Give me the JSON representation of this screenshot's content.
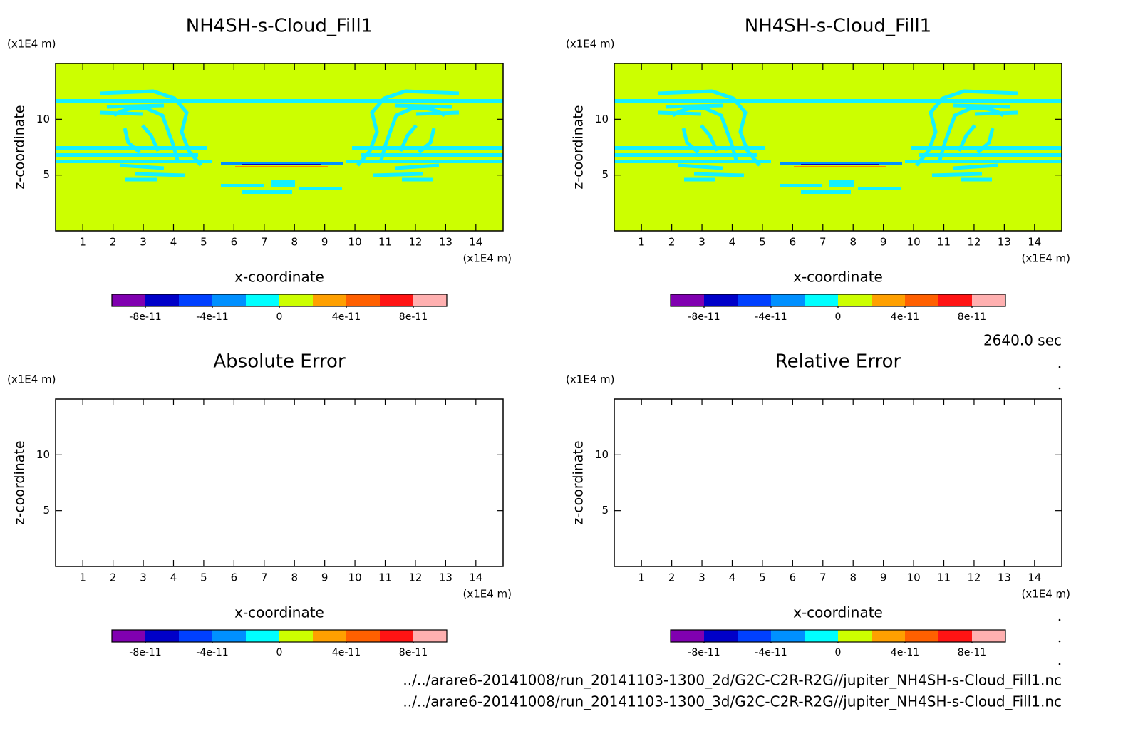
{
  "chart_data": [
    {
      "type": "contour",
      "title": "NH4SH-s-Cloud_Fill1",
      "y_unit": "(x1E4 m)",
      "x_unit": "(x1E4 m)",
      "ylabel": "z-coordinate",
      "xlabel": "x-coordinate",
      "xlim": [
        0.1,
        14.9
      ],
      "xticks": [
        1,
        2,
        3,
        4,
        5,
        6,
        7,
        8,
        9,
        10,
        11,
        12,
        13,
        14
      ],
      "ylim": [
        0,
        15
      ],
      "yticks": [
        5,
        10
      ],
      "colorbar": {
        "lim": [
          -1e-10,
          1e-10
        ],
        "ticks": [
          -8e-11,
          -4e-11,
          0,
          4e-11,
          8e-11
        ],
        "colors": [
          "#8000b0",
          "#0000c8",
          "#0040ff",
          "#0090ff",
          "#00ffff",
          "#ccff00",
          "#ffa000",
          "#ff6000",
          "#ff1414",
          "#ffb0b0"
        ]
      }
    },
    {
      "type": "contour",
      "title": "NH4SH-s-Cloud_Fill1",
      "y_unit": "(x1E4 m)",
      "x_unit": "(x1E4 m)",
      "ylabel": "z-coordinate",
      "xlabel": "x-coordinate",
      "xlim": [
        0.1,
        14.9
      ],
      "xticks": [
        1,
        2,
        3,
        4,
        5,
        6,
        7,
        8,
        9,
        10,
        11,
        12,
        13,
        14
      ],
      "ylim": [
        0,
        15
      ],
      "yticks": [
        5,
        10
      ],
      "colorbar": {
        "lim": [
          -1e-10,
          1e-10
        ],
        "ticks": [
          -8e-11,
          -4e-11,
          0,
          4e-11,
          8e-11
        ],
        "colors": [
          "#8000b0",
          "#0000c8",
          "#0040ff",
          "#0090ff",
          "#00ffff",
          "#ccff00",
          "#ffa000",
          "#ff6000",
          "#ff1414",
          "#ffb0b0"
        ]
      }
    },
    {
      "type": "contour",
      "title": "Absolute Error",
      "y_unit": "(x1E4 m)",
      "x_unit": "(x1E4 m)",
      "ylabel": "z-coordinate",
      "xlabel": "x-coordinate",
      "xlim": [
        0.1,
        14.9
      ],
      "xticks": [
        1,
        2,
        3,
        4,
        5,
        6,
        7,
        8,
        9,
        10,
        11,
        12,
        13,
        14
      ],
      "ylim": [
        0,
        15
      ],
      "yticks": [
        5,
        10
      ],
      "colorbar": {
        "lim": [
          -1e-10,
          1e-10
        ],
        "ticks": [
          -8e-11,
          -4e-11,
          0,
          4e-11,
          8e-11
        ],
        "colors": [
          "#8000b0",
          "#0000c8",
          "#0040ff",
          "#0090ff",
          "#00ffff",
          "#ccff00",
          "#ffa000",
          "#ff6000",
          "#ff1414",
          "#ffb0b0"
        ]
      }
    },
    {
      "type": "contour",
      "title": "Relative Error",
      "y_unit": "(x1E4 m)",
      "x_unit": "(x1E4 m)",
      "ylabel": "z-coordinate",
      "xlabel": "x-coordinate",
      "xlim": [
        0.1,
        14.9
      ],
      "xticks": [
        1,
        2,
        3,
        4,
        5,
        6,
        7,
        8,
        9,
        10,
        11,
        12,
        13,
        14
      ],
      "ylim": [
        0,
        15
      ],
      "yticks": [
        5,
        10
      ],
      "colorbar": {
        "lim": [
          -1e-10,
          1e-10
        ],
        "ticks": [
          -8e-11,
          -4e-11,
          0,
          4e-11,
          8e-11
        ],
        "colors": [
          "#8000b0",
          "#0000c8",
          "#0040ff",
          "#0090ff",
          "#00ffff",
          "#ccff00",
          "#ffa000",
          "#ff6000",
          "#ff1414",
          "#ffb0b0"
        ]
      }
    }
  ],
  "time": "2640.0 sec",
  "files": [
    "../../arare6-20141008/run_20141103-1300_2d/G2C-C2R-R2G//jupiter_NH4SH-s-Cloud_Fill1.nc",
    "../../arare6-20141008/run_20141103-1300_3d/G2C-C2R-R2G//jupiter_NH4SH-s-Cloud_Fill1.nc"
  ]
}
